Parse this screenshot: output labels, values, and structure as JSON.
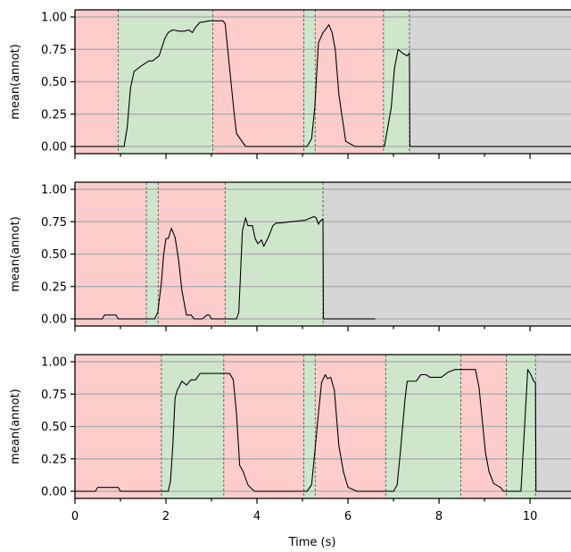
{
  "chart_data": {
    "type": "line",
    "xlabel": "Time (s)",
    "xticks": [
      "0",
      "2",
      "4",
      "6",
      "8",
      "10"
    ],
    "xlim": [
      0,
      10.9
    ],
    "colors": {
      "incorrect": "#ffcccc",
      "correct": "#cfe6cc",
      "padding": "#d6d6d6",
      "line": "#000000",
      "grid": "#b0b0b0",
      "boundary": "#666666"
    },
    "panels": [
      {
        "ylabel": "mean(annot)",
        "ylim": [
          0,
          1
        ],
        "yticks": [
          "0.00",
          "0.25",
          "0.50",
          "0.75",
          "1.00"
        ],
        "regions": [
          {
            "start": 0.0,
            "end": 0.95,
            "class": "incorrect"
          },
          {
            "start": 0.95,
            "end": 3.03,
            "class": "correct"
          },
          {
            "start": 3.03,
            "end": 5.03,
            "class": "incorrect"
          },
          {
            "start": 5.03,
            "end": 5.28,
            "class": "correct"
          },
          {
            "start": 5.28,
            "end": 6.78,
            "class": "incorrect"
          },
          {
            "start": 6.78,
            "end": 7.35,
            "class": "correct"
          },
          {
            "start": 7.35,
            "end": 10.9,
            "class": "padding"
          }
        ],
        "x": [
          0,
          0.95,
          1.08,
          1.15,
          1.22,
          1.3,
          1.45,
          1.62,
          1.7,
          1.85,
          1.97,
          2.05,
          2.15,
          2.3,
          2.4,
          2.5,
          2.58,
          2.65,
          2.75,
          2.8,
          2.95,
          3.25,
          3.3,
          3.4,
          3.5,
          3.55,
          3.75,
          5.1,
          5.2,
          5.27,
          5.35,
          5.45,
          5.5,
          5.58,
          5.65,
          5.72,
          5.8,
          5.95,
          6.15,
          6.8,
          6.95,
          7.02,
          7.1,
          7.2,
          7.3,
          7.35,
          7.36,
          10.9
        ],
        "y": [
          0,
          0,
          0,
          0.15,
          0.45,
          0.58,
          0.62,
          0.66,
          0.66,
          0.7,
          0.83,
          0.88,
          0.9,
          0.89,
          0.89,
          0.9,
          0.88,
          0.92,
          0.96,
          0.96,
          0.97,
          0.97,
          0.95,
          0.6,
          0.25,
          0.1,
          0,
          0,
          0.06,
          0.3,
          0.8,
          0.88,
          0.9,
          0.94,
          0.88,
          0.75,
          0.4,
          0.04,
          0,
          0,
          0.3,
          0.6,
          0.75,
          0.72,
          0.7,
          0.72,
          0,
          0
        ]
      },
      {
        "ylabel": "mean(annot)",
        "ylim": [
          0,
          1
        ],
        "yticks": [
          "0.00",
          "0.25",
          "0.50",
          "0.75",
          "1.00"
        ],
        "regions": [
          {
            "start": 0.0,
            "end": 1.57,
            "class": "incorrect"
          },
          {
            "start": 1.57,
            "end": 1.83,
            "class": "correct"
          },
          {
            "start": 1.83,
            "end": 3.3,
            "class": "incorrect"
          },
          {
            "start": 3.3,
            "end": 5.45,
            "class": "correct"
          },
          {
            "start": 5.45,
            "end": 10.9,
            "class": "padding"
          }
        ],
        "x": [
          0,
          0.6,
          0.65,
          0.9,
          0.95,
          1.75,
          1.82,
          1.9,
          1.95,
          2.0,
          2.05,
          2.12,
          2.2,
          2.28,
          2.35,
          2.45,
          2.55,
          2.62,
          2.68,
          2.8,
          2.9,
          2.95,
          3.0,
          3.05,
          3.1,
          3.55,
          3.6,
          3.63,
          3.68,
          3.75,
          3.8,
          3.9,
          3.96,
          4.02,
          4.1,
          4.15,
          4.25,
          4.35,
          4.42,
          4.5,
          5.0,
          5.05,
          5.25,
          5.3,
          5.35,
          5.4,
          5.45,
          5.46,
          6.6
        ],
        "y": [
          0,
          0,
          0.03,
          0.03,
          0,
          0,
          0.05,
          0.28,
          0.5,
          0.62,
          0.62,
          0.7,
          0.63,
          0.45,
          0.22,
          0.03,
          0.03,
          0,
          0,
          0,
          0.03,
          0.03,
          0,
          0,
          0,
          0,
          0.05,
          0.28,
          0.68,
          0.78,
          0.72,
          0.72,
          0.62,
          0.58,
          0.61,
          0.56,
          0.63,
          0.72,
          0.74,
          0.74,
          0.76,
          0.76,
          0.79,
          0.78,
          0.73,
          0.76,
          0.77,
          0,
          0
        ]
      },
      {
        "ylabel": "mean(annot)",
        "ylim": [
          0,
          1
        ],
        "yticks": [
          "0.00",
          "0.25",
          "0.50",
          "0.75",
          "1.00"
        ],
        "regions": [
          {
            "start": 0.0,
            "end": 1.9,
            "class": "incorrect"
          },
          {
            "start": 1.9,
            "end": 3.27,
            "class": "correct"
          },
          {
            "start": 3.27,
            "end": 5.03,
            "class": "incorrect"
          },
          {
            "start": 5.03,
            "end": 5.28,
            "class": "correct"
          },
          {
            "start": 5.28,
            "end": 6.83,
            "class": "incorrect"
          },
          {
            "start": 6.83,
            "end": 8.48,
            "class": "correct"
          },
          {
            "start": 8.48,
            "end": 9.48,
            "class": "incorrect"
          },
          {
            "start": 9.48,
            "end": 10.12,
            "class": "correct"
          },
          {
            "start": 10.12,
            "end": 10.9,
            "class": "padding"
          }
        ],
        "x": [
          0,
          0.45,
          0.5,
          0.95,
          1.0,
          2.05,
          2.1,
          2.15,
          2.2,
          2.25,
          2.35,
          2.45,
          2.55,
          2.65,
          2.75,
          3.4,
          3.48,
          3.55,
          3.62,
          3.7,
          3.8,
          3.88,
          3.95,
          5.1,
          5.2,
          5.27,
          5.35,
          5.42,
          5.5,
          5.55,
          5.62,
          5.7,
          5.8,
          5.9,
          6.0,
          6.2,
          7.0,
          7.08,
          7.15,
          7.25,
          7.3,
          7.5,
          7.6,
          7.72,
          7.8,
          8.05,
          8.2,
          8.35,
          8.8,
          8.88,
          8.95,
          9.02,
          9.1,
          9.2,
          9.3,
          9.35,
          9.42,
          9.8,
          9.88,
          9.95,
          10.02,
          10.08,
          10.12,
          10.13,
          10.9
        ],
        "y": [
          0,
          0,
          0.03,
          0.03,
          0,
          0,
          0.08,
          0.35,
          0.72,
          0.78,
          0.85,
          0.82,
          0.86,
          0.86,
          0.91,
          0.91,
          0.86,
          0.6,
          0.2,
          0.15,
          0.05,
          0.02,
          0,
          0,
          0.05,
          0.3,
          0.6,
          0.84,
          0.9,
          0.87,
          0.88,
          0.78,
          0.35,
          0.15,
          0.03,
          0,
          0,
          0.05,
          0.3,
          0.7,
          0.85,
          0.85,
          0.9,
          0.9,
          0.88,
          0.88,
          0.92,
          0.94,
          0.94,
          0.8,
          0.55,
          0.3,
          0.15,
          0.06,
          0.04,
          0.03,
          0,
          0,
          0.5,
          0.94,
          0.9,
          0.85,
          0.84,
          0,
          0
        ]
      }
    ]
  }
}
